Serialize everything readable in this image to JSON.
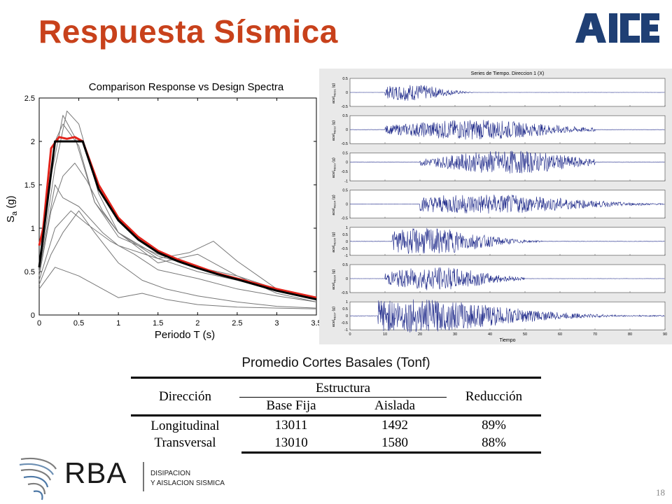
{
  "slide": {
    "title": "Respuesta Sísmica",
    "page_number": "18",
    "accent_color": "#c8411b",
    "logo_top": {
      "text": "AICE",
      "color": "#1f3f74"
    }
  },
  "footer": {
    "brand": "RBA",
    "tagline_line1": "DISIPACION",
    "tagline_line2": "Y AISLACION SISMICA"
  },
  "chart_data": [
    {
      "type": "line",
      "title": "Comparison Response vs Design Spectra",
      "xlabel": "Periodo T (s)",
      "ylabel": "S",
      "ylabel_sub": "a",
      "ylabel_unit": "(g)",
      "xlim": [
        0,
        3.5
      ],
      "ylim": [
        0,
        2.5
      ],
      "x_ticks": [
        "0",
        "0.5",
        "1",
        "1.5",
        "2",
        "2.5",
        "3",
        "3.5"
      ],
      "y_ticks": [
        "0",
        "0.5",
        "1",
        "1.5",
        "2",
        "2.5"
      ],
      "series": [
        {
          "color": "#000000",
          "x": [
            0,
            0.2,
            0.55,
            0.75,
            1.0,
            1.25,
            1.5,
            1.75,
            2.0,
            2.25,
            2.5,
            3.0,
            3.5
          ],
          "y": [
            0.55,
            2.0,
            2.0,
            1.45,
            1.09,
            0.87,
            0.72,
            0.62,
            0.54,
            0.47,
            0.41,
            0.28,
            0.18
          ]
        },
        {
          "color": "#e2231a",
          "x": [
            0,
            0.05,
            0.15,
            0.25,
            0.35,
            0.45,
            0.55,
            0.75,
            1.0,
            1.25,
            1.5,
            1.75,
            2.0,
            2.25,
            2.5,
            3.0,
            3.5
          ],
          "y": [
            0.8,
            1.0,
            1.92,
            2.05,
            2.03,
            2.05,
            2.0,
            1.5,
            1.12,
            0.9,
            0.74,
            0.64,
            0.56,
            0.48,
            0.42,
            0.3,
            0.2
          ]
        },
        {
          "color": "#777777",
          "x": [
            0,
            0.15,
            0.3,
            0.45,
            0.7,
            1.0,
            1.5,
            2.0,
            2.5,
            3.0,
            3.5
          ],
          "y": [
            0.6,
            1.6,
            2.3,
            2.05,
            1.3,
            0.9,
            0.7,
            0.55,
            0.45,
            0.3,
            0.2
          ]
        },
        {
          "color": "#777777",
          "x": [
            0,
            0.2,
            0.35,
            0.5,
            0.75,
            1.0,
            1.5,
            2.0,
            2.5,
            3.0,
            3.5
          ],
          "y": [
            0.5,
            1.7,
            2.35,
            2.2,
            1.4,
            0.95,
            0.65,
            0.5,
            0.4,
            0.3,
            0.2
          ]
        },
        {
          "color": "#777777",
          "x": [
            0,
            0.15,
            0.3,
            0.45,
            0.6,
            0.8,
            1.0,
            1.5,
            2.0,
            2.5,
            3.0,
            3.5
          ],
          "y": [
            0.45,
            1.2,
            1.6,
            1.75,
            1.55,
            1.2,
            0.95,
            0.6,
            0.7,
            0.45,
            0.25,
            0.15
          ]
        },
        {
          "color": "#777777",
          "x": [
            0,
            0.2,
            0.3,
            0.5,
            0.8,
            1.0,
            1.5,
            1.9,
            2.2,
            2.5,
            3.0,
            3.5
          ],
          "y": [
            0.5,
            1.5,
            1.35,
            1.25,
            0.95,
            0.8,
            0.65,
            0.72,
            0.85,
            0.62,
            0.3,
            0.18
          ]
        },
        {
          "color": "#777777",
          "x": [
            0,
            0.2,
            0.4,
            0.6,
            0.9,
            1.2,
            1.5,
            2.0,
            2.5,
            3.0,
            3.5
          ],
          "y": [
            0.4,
            1.0,
            1.2,
            1.05,
            0.85,
            0.7,
            0.52,
            0.42,
            0.3,
            0.22,
            0.15
          ]
        },
        {
          "color": "#777777",
          "x": [
            0,
            0.15,
            0.3,
            0.5,
            0.7,
            1.0,
            1.3,
            1.6,
            2.0,
            2.5,
            3.0,
            3.5
          ],
          "y": [
            0.35,
            0.7,
            0.95,
            1.2,
            0.95,
            0.6,
            0.4,
            0.3,
            0.22,
            0.15,
            0.1,
            0.08
          ]
        },
        {
          "color": "#777777",
          "x": [
            0,
            0.2,
            0.5,
            0.8,
            1.0,
            1.3,
            1.6,
            2.0,
            2.5,
            3.0,
            3.5
          ],
          "y": [
            0.3,
            0.55,
            0.45,
            0.3,
            0.2,
            0.25,
            0.18,
            0.12,
            0.09,
            0.08,
            0.07
          ]
        },
        {
          "color": "#777777",
          "x": [
            0,
            0.15,
            0.3,
            0.5,
            0.7,
            1.0,
            1.5,
            2.0,
            2.5,
            3.0,
            3.5
          ],
          "y": [
            0.55,
            1.9,
            2.2,
            1.95,
            1.3,
            0.95,
            0.68,
            0.55,
            0.42,
            0.3,
            0.2
          ]
        }
      ]
    },
    {
      "type": "line",
      "title": "Series de Tiempo. Direccion 1 (X)",
      "xlabel": "Tiempo",
      "xlim": [
        0,
        90
      ],
      "x_ticks": [
        "0",
        "10",
        "20",
        "30",
        "40",
        "50",
        "60",
        "70",
        "80",
        "90"
      ],
      "panels": [
        {
          "ylabel": "acel",
          "ylabel_sub": "REG1",
          "ylabel_unit": "(g)",
          "ticks": [
            "0.5",
            "0",
            "-0.5"
          ],
          "ylim": [
            -0.5,
            0.5
          ],
          "active": [
            10,
            35
          ],
          "peak_time": 17,
          "amp": 0.25
        },
        {
          "ylabel": "acel",
          "ylabel_sub": "REG2",
          "ylabel_unit": "(g)",
          "ticks": [
            "0.5",
            "0",
            "-0.5"
          ],
          "ylim": [
            -0.5,
            0.5
          ],
          "active": [
            10,
            70
          ],
          "peak_time": 35,
          "amp": 0.3
        },
        {
          "ylabel": "acel",
          "ylabel_sub": "REG3",
          "ylabel_unit": "(g)",
          "ticks": [
            "0.5",
            "0",
            "-0.5",
            "-1"
          ],
          "ylim": [
            -1,
            0.5
          ],
          "active": [
            20,
            70
          ],
          "peak_time": 45,
          "amp": 0.35
        },
        {
          "ylabel": "acel",
          "ylabel_sub": "REG4",
          "ylabel_unit": "(g)",
          "ticks": [
            "0.5",
            "0",
            "-0.5"
          ],
          "ylim": [
            -0.5,
            0.5
          ],
          "active": [
            20,
            90
          ],
          "peak_time": 38,
          "amp": 0.3
        },
        {
          "ylabel": "acel",
          "ylabel_sub": "REG5",
          "ylabel_unit": "(g)",
          "ticks": [
            "1",
            "0.5",
            "0",
            "-0.5",
            "-1"
          ],
          "ylim": [
            -1,
            1
          ],
          "active": [
            12,
            55
          ],
          "peak_time": 22,
          "amp": 0.4
        },
        {
          "ylabel": "acel",
          "ylabel_sub": "REG6",
          "ylabel_unit": "(g)",
          "ticks": [
            "0.5",
            "0",
            "-0.5"
          ],
          "ylim": [
            -0.5,
            0.5
          ],
          "active": [
            10,
            50
          ],
          "peak_time": 24,
          "amp": 0.35
        },
        {
          "ylabel": "acel",
          "ylabel_sub": "REG7",
          "ylabel_unit": "(g)",
          "ticks": [
            "1",
            "0.5",
            "0",
            "-0.5",
            "-1"
          ],
          "ylim": [
            -1,
            1
          ],
          "active": [
            8,
            90
          ],
          "peak_time": 15,
          "amp": 0.5
        }
      ]
    }
  ],
  "table": {
    "caption": "Promedio Cortes Basales (Tonf)",
    "col_direccion": "Dirección",
    "col_estructura": "Estructura",
    "col_base_fija": "Base Fija",
    "col_aislada": "Aislada",
    "col_reduccion": "Reducción",
    "rows": [
      [
        "Longitudinal",
        "13011",
        "1492",
        "89%"
      ],
      [
        "Transversal",
        "13010",
        "1580",
        "88%"
      ]
    ]
  }
}
